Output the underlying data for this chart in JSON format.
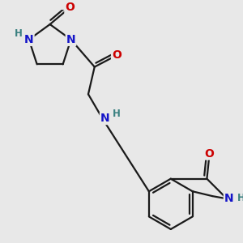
{
  "bg_color": "#e8e8e8",
  "bond_color": "#1a1a1a",
  "bond_width": 1.6,
  "atom_colors": {
    "N": "#1414c8",
    "O": "#cc0000",
    "H": "#3a8080",
    "C": "#1a1a1a"
  },
  "font_size_atom": 10,
  "font_size_H": 8.5
}
